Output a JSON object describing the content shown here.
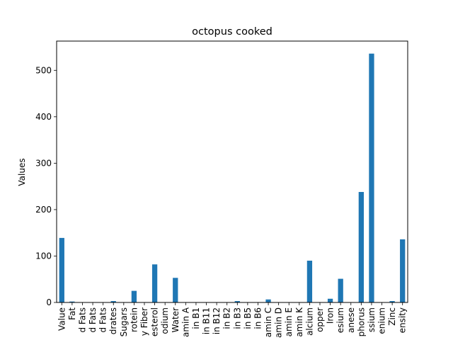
{
  "chart_data": {
    "type": "bar",
    "title": "octopus cooked",
    "xlabel": "",
    "ylabel": "Values",
    "ylim": [
      0,
      563
    ],
    "yticks": [
      0,
      100,
      200,
      300,
      400,
      500
    ],
    "bar_color": "#1f77b4",
    "grid": false,
    "categories": [
      "Value",
      "Fat",
      "d Fats",
      "d Fats",
      "d Fats",
      "drates",
      "Sugars",
      "rotein",
      "y Fiber",
      "esterol",
      "odium",
      "Water",
      "amin A",
      "in B1",
      "in B11",
      "in B12",
      "in B2",
      "in B3",
      "in B5",
      "in B6",
      "amin C",
      "amin D",
      "amin E",
      "amin K",
      "alcium",
      "opper",
      "Iron",
      "esium",
      "anese",
      "phorus",
      "ssium",
      "enium",
      "Zinc",
      "ensity"
    ],
    "values": [
      139,
      2,
      0.5,
      0.5,
      0.5,
      3,
      0,
      25,
      0,
      82,
      0,
      53,
      0,
      0,
      0,
      0,
      0,
      3,
      0,
      0,
      6.5,
      0,
      0,
      0,
      90,
      0.5,
      8,
      51,
      0,
      238,
      536,
      0,
      3,
      136
    ]
  }
}
